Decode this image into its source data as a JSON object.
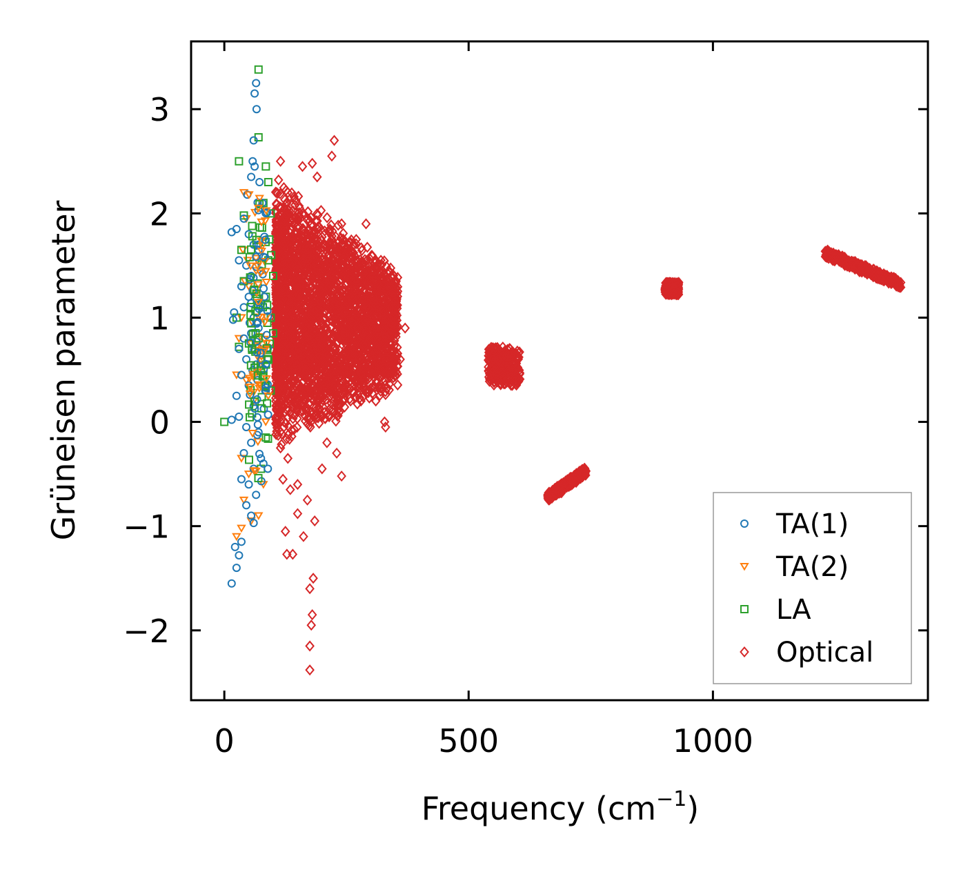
{
  "chart_data": {
    "type": "scatter",
    "title": "",
    "xlabel": "Frequency (cm",
    "xlabel_sup": "−1",
    "xlabel_close": ")",
    "ylabel": "Grüneisen parameter",
    "xlim": [
      -68,
      1440
    ],
    "ylim": [
      -2.67,
      3.65
    ],
    "xticks": [
      0,
      500,
      1000
    ],
    "xtick_labels": [
      "0",
      "500",
      "1000"
    ],
    "yticks": [
      -2,
      -1,
      0,
      1,
      2,
      3
    ],
    "ytick_labels": [
      "−2",
      "−1",
      "0",
      "1",
      "2",
      "3"
    ],
    "grid": false,
    "legend_position": "bottom-right",
    "series": [
      {
        "name": "TA(1)",
        "color": "#1f77b4",
        "marker": "circle",
        "points": [
          [
            65,
            3.25
          ],
          [
            62,
            3.15
          ],
          [
            66,
            3.0
          ],
          [
            60,
            2.7
          ],
          [
            58,
            2.5
          ],
          [
            62,
            2.45
          ],
          [
            55,
            2.35
          ],
          [
            47,
            2.18
          ],
          [
            40,
            1.95
          ],
          [
            15,
            1.82
          ],
          [
            25,
            1.85
          ],
          [
            50,
            1.8
          ],
          [
            60,
            1.7
          ],
          [
            70,
            1.65
          ],
          [
            30,
            1.55
          ],
          [
            45,
            1.5
          ],
          [
            55,
            1.4
          ],
          [
            75,
            1.45
          ],
          [
            35,
            1.3
          ],
          [
            50,
            1.2
          ],
          [
            40,
            1.1
          ],
          [
            20,
            1.05
          ],
          [
            18,
            0.98
          ],
          [
            60,
            1.0
          ],
          [
            70,
            0.9
          ],
          [
            55,
            0.85
          ],
          [
            40,
            0.8
          ],
          [
            30,
            0.7
          ],
          [
            45,
            0.6
          ],
          [
            65,
            0.55
          ],
          [
            35,
            0.45
          ],
          [
            50,
            0.35
          ],
          [
            25,
            0.25
          ],
          [
            60,
            0.15
          ],
          [
            30,
            0.05
          ],
          [
            15,
            0.02
          ],
          [
            45,
            -0.05
          ],
          [
            70,
            -0.1
          ],
          [
            55,
            -0.2
          ],
          [
            40,
            -0.3
          ],
          [
            75,
            -0.35
          ],
          [
            60,
            -0.45
          ],
          [
            35,
            -0.55
          ],
          [
            50,
            -0.6
          ],
          [
            65,
            -0.7
          ],
          [
            45,
            -0.8
          ],
          [
            55,
            -0.9
          ],
          [
            60,
            -0.97
          ],
          [
            35,
            -1.15
          ],
          [
            22,
            -1.2
          ],
          [
            30,
            -1.28
          ],
          [
            25,
            -1.4
          ],
          [
            15,
            -1.55
          ],
          [
            80,
            -0.4
          ],
          [
            85,
            0.3
          ],
          [
            82,
            1.2
          ],
          [
            78,
            2.1
          ],
          [
            72,
            2.3
          ],
          [
            68,
            0.4
          ],
          [
            52,
            0.95
          ]
        ]
      },
      {
        "name": "TA(2)",
        "color": "#ff7f0e",
        "marker": "triangle-down",
        "points": [
          [
            40,
            2.2
          ],
          [
            45,
            1.95
          ],
          [
            38,
            1.65
          ],
          [
            42,
            1.35
          ],
          [
            50,
            1.3
          ],
          [
            35,
            1.0
          ],
          [
            30,
            0.8
          ],
          [
            55,
            0.75
          ],
          [
            25,
            0.45
          ],
          [
            45,
            0.4
          ],
          [
            60,
            0.2
          ],
          [
            35,
            -0.35
          ],
          [
            50,
            -0.5
          ],
          [
            80,
            -0.6
          ],
          [
            40,
            -0.75
          ],
          [
            70,
            -0.9
          ],
          [
            55,
            -0.95
          ],
          [
            35,
            -1.02
          ],
          [
            25,
            -1.1
          ],
          [
            75,
            0.55
          ],
          [
            65,
            1.45
          ],
          [
            58,
            0.95
          ],
          [
            80,
            0.7
          ],
          [
            48,
            1.55
          ]
        ]
      },
      {
        "name": "LA",
        "color": "#2ca02c",
        "marker": "square",
        "points": [
          [
            70,
            3.38
          ],
          [
            70,
            2.73
          ],
          [
            30,
            2.5
          ],
          [
            85,
            2.45
          ],
          [
            80,
            2.1
          ],
          [
            95,
            2.0
          ],
          [
            40,
            1.98
          ],
          [
            35,
            1.65
          ],
          [
            90,
            1.55
          ],
          [
            100,
            1.4
          ],
          [
            40,
            1.35
          ],
          [
            85,
            1.2
          ],
          [
            95,
            1.0
          ],
          [
            25,
            1.0
          ],
          [
            100,
            0.85
          ],
          [
            30,
            0.72
          ],
          [
            90,
            0.6
          ],
          [
            80,
            0.45
          ],
          [
            95,
            0.3
          ],
          [
            0,
            0.0
          ],
          [
            85,
            -0.15
          ],
          [
            75,
            -0.45
          ],
          [
            90,
            2.3
          ],
          [
            92,
            1.75
          ],
          [
            88,
            0.95
          ],
          [
            96,
            1.6
          ],
          [
            93,
            0.75
          ]
        ]
      },
      {
        "name": "Optical",
        "color": "#d62728",
        "marker": "diamond",
        "points": [
          [
            175,
            -2.38
          ],
          [
            175,
            -2.15
          ],
          [
            178,
            -1.95
          ],
          [
            180,
            -1.85
          ],
          [
            175,
            -1.6
          ],
          [
            182,
            -1.5
          ],
          [
            125,
            -1.05
          ],
          [
            140,
            -1.27
          ],
          [
            128,
            -1.27
          ],
          [
            162,
            -1.1
          ],
          [
            150,
            -0.88
          ],
          [
            185,
            -0.95
          ],
          [
            120,
            -0.55
          ],
          [
            135,
            -0.65
          ],
          [
            150,
            -0.6
          ],
          [
            170,
            -0.75
          ],
          [
            200,
            -0.45
          ],
          [
            230,
            -0.3
          ],
          [
            240,
            -0.52
          ],
          [
            210,
            -0.2
          ],
          [
            130,
            -0.35
          ],
          [
            115,
            -0.25
          ],
          [
            330,
            -0.05
          ],
          [
            328,
            0.0
          ],
          [
            360,
            0.6
          ],
          [
            370,
            0.9
          ],
          [
            350,
            1.15
          ],
          [
            300,
            1.35
          ],
          [
            320,
            0.5
          ],
          [
            290,
            1.9
          ],
          [
            270,
            1.75
          ],
          [
            225,
            2.7
          ],
          [
            220,
            2.55
          ],
          [
            180,
            2.48
          ],
          [
            160,
            2.45
          ],
          [
            115,
            2.5
          ],
          [
            130,
            2.2
          ],
          [
            190,
            2.35
          ],
          [
            150,
            1.95
          ],
          [
            200,
            0.05
          ],
          [
            250,
            0.6
          ],
          [
            280,
            1.05
          ],
          [
            240,
            1.9
          ],
          [
            210,
            1.4
          ],
          [
            170,
            0.3
          ],
          [
            140,
            0.9
          ],
          [
            120,
            1.7
          ],
          [
            310,
            0.2
          ],
          [
            340,
            0.85
          ],
          [
            545,
            0.45
          ],
          [
            560,
            0.6
          ],
          [
            575,
            0.65
          ],
          [
            590,
            0.5
          ],
          [
            600,
            0.6
          ],
          [
            570,
            0.4
          ],
          [
            555,
            0.55
          ],
          [
            585,
            0.7
          ],
          [
            595,
            0.42
          ],
          [
            665,
            -0.7
          ],
          [
            680,
            -0.65
          ],
          [
            695,
            -0.6
          ],
          [
            710,
            -0.57
          ],
          [
            725,
            -0.52
          ],
          [
            735,
            -0.49
          ],
          [
            690,
            -0.68
          ],
          [
            705,
            -0.62
          ],
          [
            720,
            -0.58
          ],
          [
            905,
            1.32
          ],
          [
            912,
            1.3
          ],
          [
            920,
            1.27
          ],
          [
            928,
            1.24
          ],
          [
            915,
            1.22
          ],
          [
            918,
            1.33
          ],
          [
            1235,
            1.6
          ],
          [
            1250,
            1.58
          ],
          [
            1265,
            1.55
          ],
          [
            1280,
            1.53
          ],
          [
            1295,
            1.5
          ],
          [
            1310,
            1.47
          ],
          [
            1325,
            1.45
          ],
          [
            1340,
            1.42
          ],
          [
            1355,
            1.39
          ],
          [
            1370,
            1.36
          ],
          [
            1380,
            1.34
          ],
          [
            1245,
            1.55
          ],
          [
            1270,
            1.5
          ],
          [
            1300,
            1.44
          ],
          [
            1330,
            1.4
          ],
          [
            1360,
            1.35
          ]
        ],
        "dense_regions": [
          {
            "x": [
              105,
              355
            ],
            "y": [
              -0.5,
              2.45
            ],
            "shape": "band"
          },
          {
            "x": [
              540,
              605
            ],
            "y": [
              0.35,
              0.72
            ],
            "shape": "blob"
          },
          {
            "x": [
              662,
              740
            ],
            "y": [
              -0.72,
              -0.47
            ],
            "shape": "diagonal"
          },
          {
            "x": [
              902,
              930
            ],
            "y": [
              1.22,
              1.34
            ],
            "shape": "blob"
          },
          {
            "x": [
              1230,
              1385
            ],
            "y": [
              1.32,
              1.62
            ],
            "shape": "diagonal"
          }
        ]
      }
    ]
  }
}
